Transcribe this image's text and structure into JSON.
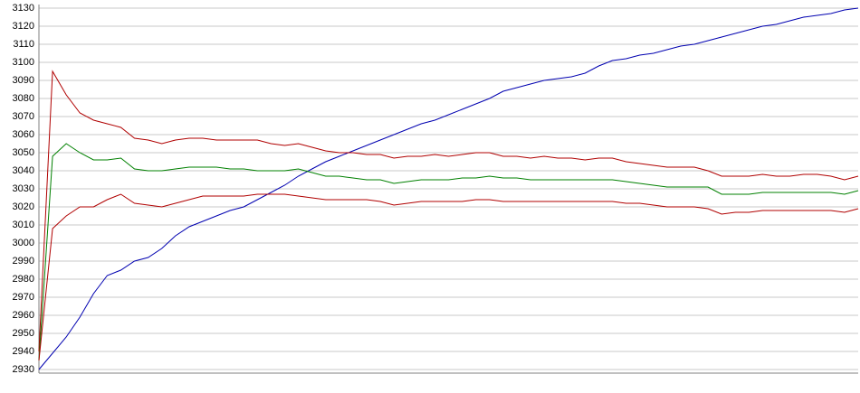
{
  "chart_data": {
    "type": "line",
    "ylim": [
      2930,
      3130
    ],
    "yticks": [
      2930,
      2940,
      2950,
      2960,
      2970,
      2980,
      2990,
      3000,
      3010,
      3020,
      3030,
      3040,
      3050,
      3060,
      3070,
      3080,
      3090,
      3100,
      3110,
      3120,
      3130
    ],
    "grid": true,
    "series": [
      {
        "color": "#0000b0",
        "values": [
          2930,
          2939,
          2948,
          2959,
          2972,
          2982,
          2985,
          2990,
          2992,
          2997,
          3004,
          3009,
          3012,
          3015,
          3018,
          3020,
          3024,
          3028,
          3032,
          3037,
          3041,
          3045,
          3048,
          3051,
          3054,
          3057,
          3060,
          3063,
          3066,
          3068,
          3071,
          3074,
          3077,
          3080,
          3084,
          3086,
          3088,
          3090,
          3091,
          3092,
          3094,
          3098,
          3101,
          3102,
          3104,
          3105,
          3107,
          3109,
          3110,
          3112,
          3114,
          3116,
          3118,
          3120,
          3121,
          3123,
          3125,
          3126,
          3127,
          3129,
          3130
        ]
      },
      {
        "color": "#b00000",
        "values": [
          2940,
          3095,
          3082,
          3072,
          3068,
          3066,
          3064,
          3058,
          3057,
          3055,
          3057,
          3058,
          3058,
          3057,
          3057,
          3057,
          3057,
          3055,
          3054,
          3055,
          3053,
          3051,
          3050,
          3050,
          3049,
          3049,
          3047,
          3048,
          3048,
          3049,
          3048,
          3049,
          3050,
          3050,
          3048,
          3048,
          3047,
          3048,
          3047,
          3047,
          3046,
          3047,
          3047,
          3045,
          3044,
          3043,
          3042,
          3042,
          3042,
          3040,
          3037,
          3037,
          3037,
          3038,
          3037,
          3037,
          3038,
          3038,
          3037,
          3035,
          3037
        ]
      },
      {
        "color": "#008000",
        "values": [
          2935,
          3048,
          3055,
          3050,
          3046,
          3046,
          3047,
          3041,
          3040,
          3040,
          3041,
          3042,
          3042,
          3042,
          3041,
          3041,
          3040,
          3040,
          3040,
          3041,
          3039,
          3037,
          3037,
          3036,
          3035,
          3035,
          3033,
          3034,
          3035,
          3035,
          3035,
          3036,
          3036,
          3037,
          3036,
          3036,
          3035,
          3035,
          3035,
          3035,
          3035,
          3035,
          3035,
          3034,
          3033,
          3032,
          3031,
          3031,
          3031,
          3031,
          3027,
          3027,
          3027,
          3028,
          3028,
          3028,
          3028,
          3028,
          3028,
          3027,
          3029
        ]
      },
      {
        "color": "#b00000",
        "values": [
          2935,
          3008,
          3015,
          3020,
          3020,
          3024,
          3027,
          3022,
          3021,
          3020,
          3022,
          3024,
          3026,
          3026,
          3026,
          3026,
          3027,
          3027,
          3027,
          3026,
          3025,
          3024,
          3024,
          3024,
          3024,
          3023,
          3021,
          3022,
          3023,
          3023,
          3023,
          3023,
          3024,
          3024,
          3023,
          3023,
          3023,
          3023,
          3023,
          3023,
          3023,
          3023,
          3023,
          3022,
          3022,
          3021,
          3020,
          3020,
          3020,
          3019,
          3016,
          3017,
          3017,
          3018,
          3018,
          3018,
          3018,
          3018,
          3018,
          3017,
          3019
        ]
      }
    ]
  }
}
